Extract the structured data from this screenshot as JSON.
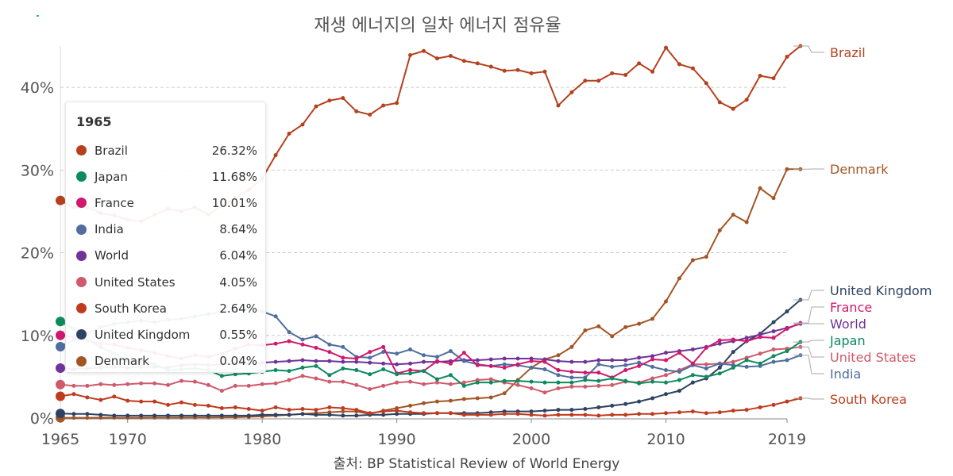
{
  "chart_data": {
    "type": "line",
    "title": "재생 에너지의 일차 에너지 점유율",
    "source": "출처: BP Statistical Review of World Energy",
    "x_range": [
      1965,
      2019
    ],
    "x_ticks": [
      1965,
      1970,
      1980,
      1990,
      2000,
      2010,
      2019
    ],
    "y_range": [
      0,
      45
    ],
    "y_ticks": [
      {
        "value": 0,
        "label": "0%"
      },
      {
        "value": 10,
        "label": "10%"
      },
      {
        "value": 20,
        "label": "20%"
      },
      {
        "value": 30,
        "label": "30%"
      },
      {
        "value": 40,
        "label": "40%"
      }
    ],
    "grid": "horizontal dashed",
    "tooltip_year": "1965",
    "series": [
      {
        "name": "Brazil",
        "color": "#b5401e",
        "label_color": "#b5401e",
        "end_label_value": 45.0,
        "legend_value": "26.32%",
        "values": [
          26.32,
          25.5,
          25.5,
          24.8,
          24.5,
          24.0,
          23.8,
          24.6,
          25.3,
          25.0,
          25.5,
          24.6,
          25.7,
          26.6,
          27.6,
          29.0,
          31.8,
          34.4,
          35.5,
          37.7,
          38.4,
          38.7,
          37.1,
          36.7,
          37.8,
          38.1,
          43.9,
          44.4,
          43.5,
          43.8,
          43.2,
          42.9,
          42.5,
          42.0,
          42.1,
          41.7,
          41.9,
          37.8,
          39.4,
          40.8,
          40.8,
          41.7,
          41.5,
          42.9,
          41.9,
          44.8,
          42.8,
          42.3,
          40.5,
          38.2,
          37.4,
          38.5,
          41.4,
          41.1,
          43.7,
          45.0
        ]
      },
      {
        "name": "Japan",
        "color": "#0d8a5e",
        "label_color": "#0d8a5e",
        "end_label_value": 9.2,
        "legend_value": "11.68%",
        "values": [
          11.68,
          10.8,
          9.5,
          8.6,
          7.8,
          7.0,
          6.9,
          6.5,
          5.8,
          5.9,
          6.0,
          5.8,
          5.1,
          5.3,
          5.4,
          5.6,
          5.8,
          5.7,
          6.1,
          6.3,
          5.2,
          6.0,
          5.8,
          5.3,
          5.9,
          5.3,
          5.4,
          5.7,
          4.7,
          5.2,
          3.9,
          4.3,
          4.3,
          4.5,
          4.5,
          4.4,
          4.3,
          4.3,
          4.3,
          4.6,
          4.5,
          4.8,
          4.5,
          4.2,
          4.4,
          4.3,
          4.6,
          5.2,
          5.0,
          5.4,
          6.1,
          7.0,
          6.6,
          7.5,
          8.1,
          9.2
        ]
      },
      {
        "name": "France",
        "color": "#d0186d",
        "label_color": "#d0186d",
        "end_label_value": 11.5,
        "legend_value": "10.01%",
        "values": [
          10.01,
          9.8,
          9.4,
          9.0,
          8.9,
          8.5,
          8.2,
          7.9,
          7.5,
          7.2,
          7.6,
          7.4,
          7.8,
          8.4,
          8.9,
          8.8,
          9.0,
          9.3,
          8.9,
          8.5,
          8.0,
          7.3,
          7.2,
          8.0,
          8.6,
          5.4,
          5.8,
          5.7,
          6.9,
          6.6,
          7.9,
          6.4,
          6.3,
          6.1,
          6.5,
          6.9,
          6.8,
          5.8,
          5.6,
          5.5,
          5.5,
          4.9,
          5.8,
          6.3,
          7.1,
          7.0,
          7.9,
          6.6,
          8.5,
          9.4,
          9.5,
          9.3,
          9.8,
          9.7,
          10.8,
          11.5
        ]
      },
      {
        "name": "India",
        "color": "#4f6e9e",
        "label_color": "#4f6e9e",
        "end_label_value": 7.6,
        "legend_value": "8.64%",
        "values": [
          8.64,
          9.5,
          10.2,
          11.0,
          11.4,
          11.6,
          11.8,
          11.6,
          11.9,
          12.0,
          12.3,
          12.6,
          12.8,
          13.0,
          13.2,
          12.9,
          12.3,
          10.4,
          9.5,
          9.9,
          8.9,
          8.6,
          7.4,
          7.3,
          8.0,
          7.8,
          8.3,
          7.6,
          7.4,
          8.1,
          6.9,
          6.5,
          6.3,
          6.5,
          6.4,
          6.1,
          5.9,
          5.2,
          4.9,
          4.9,
          6.5,
          6.2,
          6.4,
          6.7,
          6.2,
          5.8,
          5.6,
          6.4,
          6.0,
          6.6,
          6.4,
          6.2,
          6.3,
          6.8,
          7.0,
          7.6
        ]
      },
      {
        "name": "World",
        "color": "#6f3399",
        "label_color": "#6f3399",
        "end_label_value": 11.4,
        "legend_value": "6.04%",
        "values": [
          6.04,
          5.9,
          6.0,
          6.1,
          6.2,
          6.1,
          6.2,
          6.2,
          6.1,
          6.4,
          6.5,
          6.4,
          6.5,
          6.6,
          6.6,
          6.7,
          6.8,
          6.9,
          7.0,
          6.9,
          6.9,
          6.8,
          6.8,
          6.7,
          6.6,
          6.5,
          6.6,
          6.8,
          6.8,
          6.9,
          7.0,
          7.0,
          7.1,
          7.2,
          7.2,
          7.2,
          7.1,
          6.9,
          6.8,
          6.8,
          7.0,
          7.0,
          7.0,
          7.3,
          7.5,
          7.9,
          8.1,
          8.3,
          8.6,
          9.0,
          9.3,
          9.7,
          10.1,
          10.5,
          10.9,
          11.4
        ]
      },
      {
        "name": "United States",
        "color": "#cf5a6b",
        "label_color": "#cf5a6b",
        "end_label_value": 8.6,
        "legend_value": "4.05%",
        "values": [
          4.05,
          3.9,
          3.9,
          4.1,
          4.0,
          4.1,
          4.2,
          4.2,
          4.0,
          4.5,
          4.4,
          4.0,
          3.3,
          3.9,
          3.9,
          4.1,
          4.2,
          4.6,
          5.1,
          4.8,
          4.4,
          4.4,
          4.0,
          3.5,
          3.9,
          4.3,
          4.4,
          4.1,
          4.3,
          4.1,
          4.3,
          4.6,
          4.7,
          4.3,
          4.0,
          3.6,
          3.1,
          3.6,
          3.8,
          3.8,
          3.9,
          4.0,
          4.4,
          4.3,
          4.8,
          5.2,
          5.8,
          6.5,
          6.5,
          6.6,
          6.8,
          7.3,
          7.8,
          8.3,
          8.4,
          8.6
        ]
      },
      {
        "name": "South Korea",
        "color": "#c03a1e",
        "label_color": "#b8401f",
        "end_label_value": 2.4,
        "legend_value": "2.64%",
        "values": [
          2.64,
          2.9,
          2.5,
          2.2,
          2.6,
          2.1,
          2.0,
          2.0,
          1.6,
          1.9,
          1.6,
          1.5,
          1.2,
          1.3,
          1.1,
          0.9,
          1.3,
          1.0,
          1.1,
          1.0,
          1.3,
          1.2,
          1.0,
          0.6,
          0.8,
          0.9,
          0.7,
          0.6,
          0.6,
          0.6,
          0.4,
          0.4,
          0.4,
          0.5,
          0.5,
          0.4,
          0.3,
          0.4,
          0.4,
          0.4,
          0.3,
          0.4,
          0.4,
          0.5,
          0.5,
          0.6,
          0.7,
          0.8,
          0.6,
          0.7,
          0.9,
          1.0,
          1.3,
          1.6,
          2.0,
          2.4
        ]
      },
      {
        "name": "United Kingdom",
        "color": "#2e4262",
        "label_color": "#2e4262",
        "end_label_value": 14.3,
        "legend_value": "0.55%",
        "values": [
          0.55,
          0.5,
          0.5,
          0.4,
          0.3,
          0.3,
          0.3,
          0.3,
          0.3,
          0.3,
          0.3,
          0.3,
          0.3,
          0.3,
          0.3,
          0.4,
          0.4,
          0.4,
          0.5,
          0.4,
          0.4,
          0.3,
          0.3,
          0.4,
          0.4,
          0.5,
          0.5,
          0.5,
          0.6,
          0.6,
          0.6,
          0.6,
          0.7,
          0.8,
          0.8,
          0.8,
          0.9,
          1.0,
          1.0,
          1.1,
          1.3,
          1.5,
          1.7,
          2.0,
          2.4,
          2.9,
          3.3,
          4.3,
          4.8,
          6.1,
          8.0,
          9.3,
          10.2,
          11.6,
          12.9,
          14.3
        ]
      },
      {
        "name": "Denmark",
        "color": "#a35526",
        "label_color": "#a35526",
        "end_label_value": 30.1,
        "legend_value": "0.04%",
        "values": [
          0.04,
          0.04,
          0.04,
          0.05,
          0.05,
          0.05,
          0.05,
          0.06,
          0.06,
          0.06,
          0.07,
          0.07,
          0.08,
          0.1,
          0.15,
          0.2,
          0.3,
          0.4,
          0.5,
          0.6,
          0.7,
          0.8,
          0.8,
          0.5,
          0.9,
          1.2,
          1.5,
          1.8,
          2.0,
          2.1,
          2.3,
          2.4,
          2.5,
          3.0,
          4.6,
          6.1,
          7.1,
          7.6,
          8.6,
          10.6,
          11.1,
          9.9,
          11.0,
          11.4,
          12.0,
          14.1,
          16.9,
          19.1,
          19.5,
          22.7,
          24.6,
          23.7,
          27.8,
          26.6,
          30.1,
          30.1
        ]
      }
    ]
  }
}
